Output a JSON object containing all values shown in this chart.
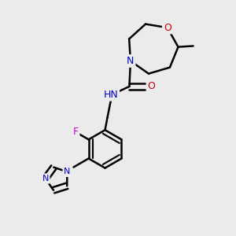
{
  "background_color": "#ebebeb",
  "atom_colors": {
    "C": "#000000",
    "N": "#0000cc",
    "O": "#cc0000",
    "F": "#cc00cc",
    "H": "#666666"
  },
  "bond_color": "#000000",
  "bond_width": 1.8,
  "figsize": [
    3.0,
    3.0
  ],
  "dpi": 100,
  "xlim": [
    0,
    10
  ],
  "ylim": [
    0,
    10
  ]
}
